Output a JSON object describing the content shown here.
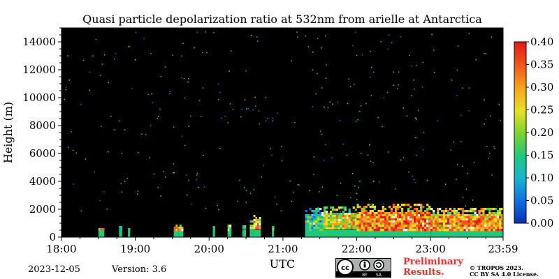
{
  "chart_data": {
    "type": "heatmap",
    "title": "Quasi particle depolarization ratio at 532nm from arielle at Antarctica",
    "xlabel": "UTC",
    "ylabel": "Height (m)",
    "x_ticks": [
      "18:00",
      "19:00",
      "20:00",
      "21:00",
      "22:00",
      "23:00",
      "23:59"
    ],
    "y_ticks": [
      0,
      2000,
      4000,
      6000,
      8000,
      10000,
      12000,
      14000
    ],
    "ylim": [
      0,
      15000
    ],
    "xlim_hours": [
      18.0,
      23.983
    ],
    "colorbar": {
      "ticks": [
        "0.00",
        "0.05",
        "0.10",
        "0.15",
        "0.20",
        "0.25",
        "0.30",
        "0.35",
        "0.40"
      ],
      "range": [
        0.0,
        0.4
      ],
      "colormap": [
        "#0a2fb5",
        "#0e6fe0",
        "#17b6d0",
        "#1fc97a",
        "#7fd42b",
        "#e8e023",
        "#f7a21a",
        "#f2561d",
        "#e01a14"
      ]
    },
    "layers": [
      {
        "start_hour": 18.5,
        "end_hour": 18.58,
        "top_m": 800,
        "value": 0.3
      },
      {
        "start_hour": 18.78,
        "end_hour": 18.82,
        "top_m": 800,
        "value": 0.15
      },
      {
        "start_hour": 18.9,
        "end_hour": 18.93,
        "top_m": 800,
        "value": 0.15
      },
      {
        "start_hour": 19.52,
        "end_hour": 19.65,
        "top_m": 900,
        "value": 0.28
      },
      {
        "start_hour": 20.05,
        "end_hour": 20.08,
        "top_m": 800,
        "value": 0.15
      },
      {
        "start_hour": 20.25,
        "end_hour": 20.3,
        "top_m": 900,
        "value": 0.2
      },
      {
        "start_hour": 20.45,
        "end_hour": 20.5,
        "top_m": 1000,
        "value": 0.2
      },
      {
        "start_hour": 20.55,
        "end_hour": 20.6,
        "top_m": 1200,
        "value": 0.22
      },
      {
        "start_hour": 20.6,
        "end_hour": 20.7,
        "top_m": 1600,
        "value": 0.3
      },
      {
        "start_hour": 20.85,
        "end_hour": 20.88,
        "top_m": 800,
        "value": 0.15
      },
      {
        "start_hour": 21.3,
        "end_hour": 21.55,
        "top_m": 2100,
        "value": 0.15
      },
      {
        "start_hour": 21.55,
        "end_hour": 22.0,
        "top_m": 2200,
        "value": 0.25
      },
      {
        "start_hour": 22.0,
        "end_hour": 23.0,
        "top_m": 2400,
        "value": 0.32
      },
      {
        "start_hour": 23.0,
        "end_hour": 23.983,
        "top_m": 2100,
        "value": 0.3
      }
    ]
  },
  "footer": {
    "date": "2023-12-05",
    "version": "Version: 3.6",
    "preliminary_line1": "Preliminary",
    "preliminary_line2": "Results.",
    "copyright_line1": "© TROPOS 2023.",
    "copyright_line2": "CC BY SA 4.0 License.",
    "cc_labels": [
      "cc",
      "BY",
      "SA"
    ]
  }
}
